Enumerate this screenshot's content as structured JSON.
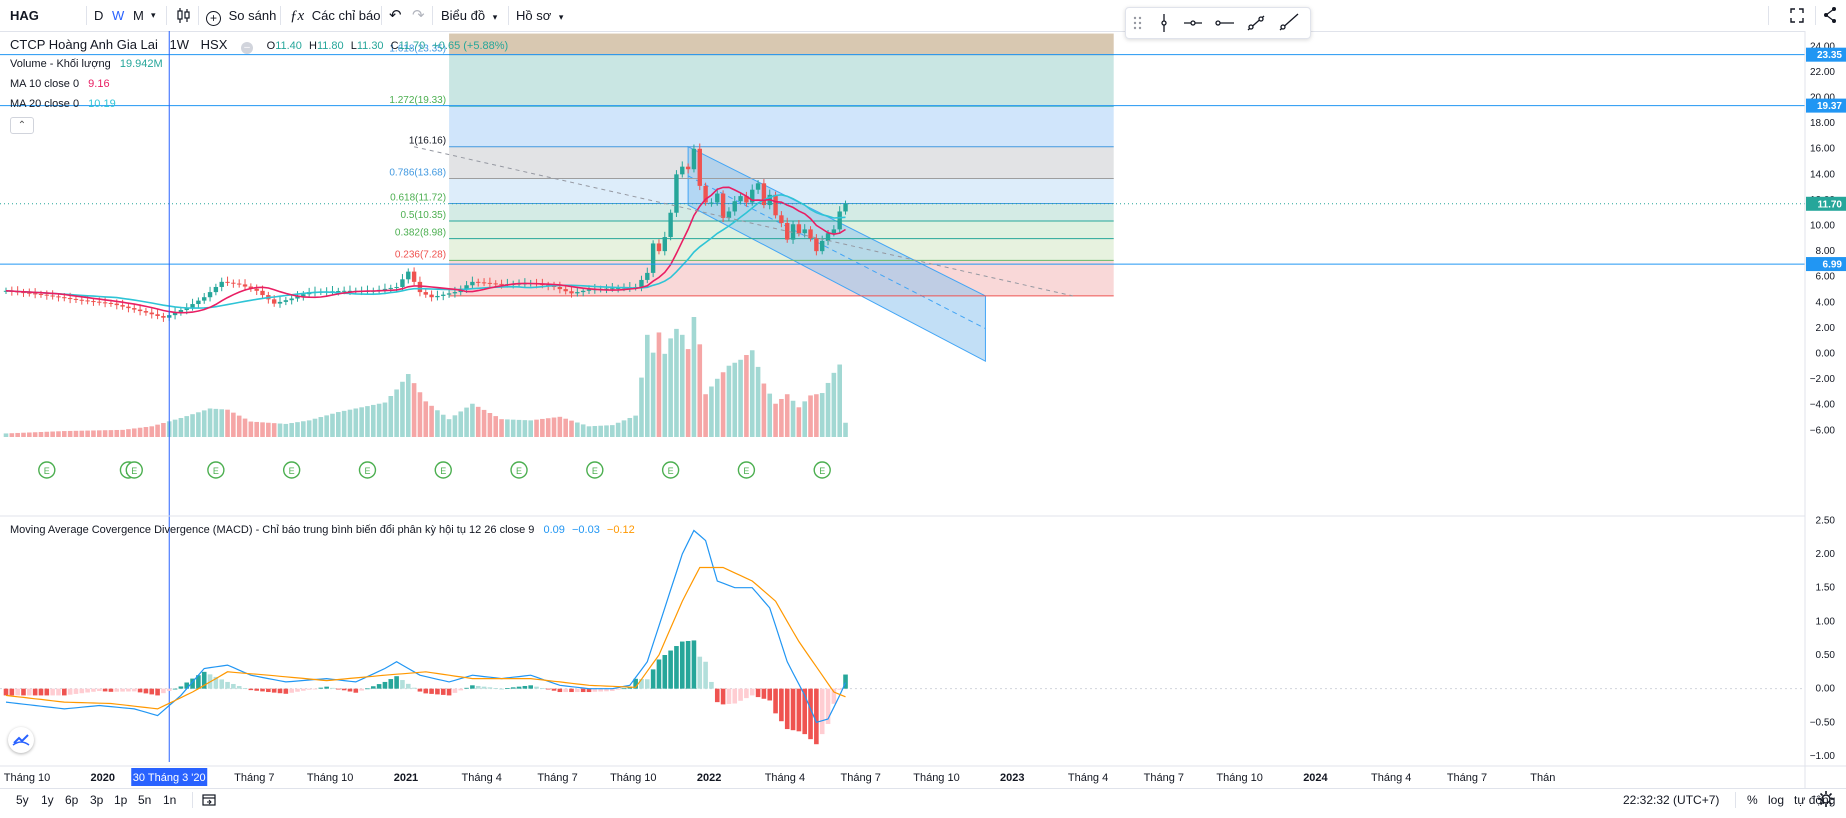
{
  "toolbar": {
    "symbol": "HAG",
    "intervals": [
      "D",
      "W",
      "M"
    ],
    "active_interval": "W",
    "compare_label": "So sánh",
    "indicators_label": "Các chỉ báo",
    "chart_menu_label": "Biểu đồ",
    "profile_label": "Hồ sơ"
  },
  "legend": {
    "title": "CTCP Hoàng Anh Gia Lai",
    "interval": "1W",
    "exchange": "HSX",
    "ohlc": {
      "o_label": "O",
      "o": "11.40",
      "h_label": "H",
      "h": "11.80",
      "l_label": "L",
      "l": "11.30",
      "c_label": "C",
      "c": "11.70",
      "change": "+0.65 (+5.88%)"
    },
    "volume_label": "Volume - Khối lượng",
    "volume_value": "19.942M",
    "ma10_label": "MA 10 close 0",
    "ma10_value": "9.16",
    "ma20_label": "MA 20 close 0",
    "ma20_value": "10.19",
    "macd_label": "Moving Average Covergence Divergence (MACD) - Chỉ báo trung bình biến đổi phân kỳ hội tụ 12 26 close 9",
    "macd_values": [
      "0.09",
      "−0.03",
      "−0.12"
    ]
  },
  "colors": {
    "up": "#26a69a",
    "down": "#ef5350",
    "ma10": "#e91e63",
    "ma20": "#2ec4d6",
    "macd": "#2196f3",
    "signal": "#ff9800",
    "accent": "#2962ff",
    "hline": "#2196f3"
  },
  "chart_data": [
    {
      "type": "candlestick",
      "scale_labels": [
        "24.00",
        "22.00",
        "20.00",
        "18.00",
        "16.00",
        "14.00",
        "12.00",
        "10.00",
        "8.00",
        "6.00",
        "4.00",
        "2.00",
        "0.00",
        "−2.00",
        "−4.00",
        "−6.00"
      ],
      "ylim": [
        -6.6,
        25.2
      ],
      "last_price": "11.70",
      "horizontal_lines": [
        {
          "value": 23.35,
          "label": "23.35"
        },
        {
          "value": 19.37,
          "label": "19.37"
        },
        {
          "value": 6.99,
          "label": "6.99"
        }
      ],
      "fibonacci": {
        "levels": [
          {
            "label": "1.618(23.35)",
            "value": 23.35
          },
          {
            "label": "1.272(19.33)",
            "value": 19.33
          },
          {
            "label": "1(16.16)",
            "value": 16.16
          },
          {
            "label": "0.786(13.68)",
            "value": 13.68
          },
          {
            "label": "0.618(11.72)",
            "value": 11.72
          },
          {
            "label": "0.5(10.35)",
            "value": 10.35
          },
          {
            "label": "0.382(8.98)",
            "value": 8.98
          },
          {
            "label": "0.236(7.28)",
            "value": 7.28
          },
          {
            "value": 4.5
          }
        ],
        "top_extent": 25.0
      },
      "events_label": "E",
      "x_axis": [
        {
          "label": "Tháng 10",
          "idx": 0
        },
        {
          "label": "2020",
          "idx": 13
        },
        {
          "label": "30 Tháng 3 '20",
          "idx": 26,
          "highlight": true
        },
        {
          "label": "Tháng 7",
          "idx": 39
        },
        {
          "label": "Tháng 10",
          "idx": 52
        },
        {
          "label": "2021",
          "idx": 65
        },
        {
          "label": "Tháng 4",
          "idx": 78
        },
        {
          "label": "Tháng 7",
          "idx": 91
        },
        {
          "label": "Tháng 10",
          "idx": 104
        },
        {
          "label": "2022",
          "idx": 117
        },
        {
          "label": "Tháng 4",
          "idx": 130
        },
        {
          "label": "Tháng 7",
          "idx": 143
        },
        {
          "label": "Tháng 10",
          "idx": 156
        },
        {
          "label": "2023",
          "idx": 169
        },
        {
          "label": "Tháng 4",
          "idx": 182
        },
        {
          "label": "Tháng 7",
          "idx": 195
        },
        {
          "label": "Tháng 10",
          "idx": 208
        },
        {
          "label": "2024",
          "idx": 221
        },
        {
          "label": "Tháng 4",
          "idx": 234
        },
        {
          "label": "Tháng 7",
          "idx": 247
        },
        {
          "label": "Thán",
          "idx": 260
        }
      ],
      "close_anchors": [
        [
          0,
          4.9
        ],
        [
          6,
          4.6
        ],
        [
          12,
          4.2
        ],
        [
          18,
          3.9
        ],
        [
          24,
          3.2
        ],
        [
          27,
          2.8
        ],
        [
          31,
          3.6
        ],
        [
          34,
          4.4
        ],
        [
          37,
          5.6
        ],
        [
          40,
          5.4
        ],
        [
          43,
          4.9
        ],
        [
          46,
          3.9
        ],
        [
          49,
          4.3
        ],
        [
          52,
          4.8
        ],
        [
          58,
          4.9
        ],
        [
          63,
          4.9
        ],
        [
          67,
          5.2
        ],
        [
          69,
          6.4
        ],
        [
          71,
          4.8
        ],
        [
          73,
          4.4
        ],
        [
          77,
          4.8
        ],
        [
          80,
          5.6
        ],
        [
          85,
          5.4
        ],
        [
          90,
          5.5
        ],
        [
          94,
          5.2
        ],
        [
          97,
          4.7
        ],
        [
          100,
          5.0
        ],
        [
          104,
          5.1
        ],
        [
          108,
          5.2
        ],
        [
          110,
          6.3
        ],
        [
          111,
          8.6
        ],
        [
          112,
          8.0
        ],
        [
          113,
          9.1
        ],
        [
          114,
          11.0
        ],
        [
          115,
          14.0
        ],
        [
          116,
          14.6
        ],
        [
          117,
          14.4
        ],
        [
          118,
          16.0
        ],
        [
          119,
          13.1
        ],
        [
          120,
          11.8
        ],
        [
          121,
          11.8
        ],
        [
          122,
          12.5
        ],
        [
          123,
          10.6
        ],
        [
          124,
          11.1
        ],
        [
          125,
          11.9
        ],
        [
          126,
          12.3
        ],
        [
          127,
          11.8
        ],
        [
          128,
          12.8
        ],
        [
          129,
          13.3
        ],
        [
          130,
          11.6
        ],
        [
          131,
          12.4
        ],
        [
          132,
          10.8
        ],
        [
          133,
          10.2
        ],
        [
          134,
          8.9
        ],
        [
          135,
          10.1
        ],
        [
          136,
          9.4
        ],
        [
          137,
          9.7
        ],
        [
          138,
          9.0
        ],
        [
          139,
          8.0
        ],
        [
          140,
          8.8
        ],
        [
          141,
          9.4
        ],
        [
          142,
          9.7
        ],
        [
          143,
          11.1
        ],
        [
          144,
          11.7
        ]
      ],
      "volume_anchors": [
        [
          0,
          0.3
        ],
        [
          10,
          0.5
        ],
        [
          20,
          0.6
        ],
        [
          25,
          0.9
        ],
        [
          30,
          1.6
        ],
        [
          35,
          2.4
        ],
        [
          38,
          2.3
        ],
        [
          42,
          1.3
        ],
        [
          48,
          1.1
        ],
        [
          52,
          1.4
        ],
        [
          57,
          2.1
        ],
        [
          62,
          2.6
        ],
        [
          65,
          2.9
        ],
        [
          67,
          4.0
        ],
        [
          69,
          5.3
        ],
        [
          72,
          3.0
        ],
        [
          76,
          1.5
        ],
        [
          80,
          2.8
        ],
        [
          85,
          1.5
        ],
        [
          90,
          1.4
        ],
        [
          95,
          1.7
        ],
        [
          100,
          0.9
        ],
        [
          104,
          1.0
        ],
        [
          108,
          1.8
        ],
        [
          109,
          5.0
        ],
        [
          110,
          8.6
        ],
        [
          111,
          7.1
        ],
        [
          112,
          8.8
        ],
        [
          113,
          7.0
        ],
        [
          114,
          8.3
        ],
        [
          115,
          9.1
        ],
        [
          116,
          8.6
        ],
        [
          117,
          7.4
        ],
        [
          118,
          10.1
        ],
        [
          119,
          7.8
        ],
        [
          120,
          3.6
        ],
        [
          122,
          4.9
        ],
        [
          124,
          6.0
        ],
        [
          126,
          6.5
        ],
        [
          128,
          7.3
        ],
        [
          130,
          4.5
        ],
        [
          132,
          2.8
        ],
        [
          134,
          3.6
        ],
        [
          136,
          2.5
        ],
        [
          138,
          3.5
        ],
        [
          140,
          3.7
        ],
        [
          142,
          5.4
        ],
        [
          143,
          6.1
        ],
        [
          144,
          1.2
        ]
      ],
      "volume_max": 10.1,
      "channel": {
        "upper": [
          [
            117,
            16.16
          ],
          [
            168,
            4.5
          ]
        ],
        "lower": [
          [
            117,
            11.6
          ],
          [
            168,
            -0.6
          ]
        ],
        "middle": [
          [
            117,
            13.88
          ],
          [
            168,
            1.95
          ]
        ]
      },
      "trend_line": [
        [
          70,
          16.16
        ],
        [
          183,
          4.5
        ]
      ]
    },
    {
      "type": "line",
      "scale_labels": [
        "2.50",
        "2.00",
        "1.50",
        "1.00",
        "0.50",
        "0.00",
        "−0.50",
        "−1.00"
      ],
      "ylim": [
        -1.0,
        2.55
      ],
      "zero": 0,
      "macd_anchors": [
        [
          0,
          -0.2
        ],
        [
          10,
          -0.3
        ],
        [
          16,
          -0.25
        ],
        [
          22,
          -0.3
        ],
        [
          26,
          -0.4
        ],
        [
          30,
          -0.1
        ],
        [
          34,
          0.3
        ],
        [
          38,
          0.35
        ],
        [
          42,
          0.2
        ],
        [
          48,
          0.1
        ],
        [
          55,
          0.15
        ],
        [
          60,
          0.1
        ],
        [
          65,
          0.3
        ],
        [
          67,
          0.4
        ],
        [
          71,
          0.2
        ],
        [
          76,
          0.1
        ],
        [
          80,
          0.2
        ],
        [
          85,
          0.15
        ],
        [
          90,
          0.2
        ],
        [
          95,
          0.05
        ],
        [
          100,
          0.0
        ],
        [
          104,
          0.0
        ],
        [
          107,
          0.05
        ],
        [
          110,
          0.4
        ],
        [
          113,
          1.2
        ],
        [
          116,
          2.0
        ],
        [
          118,
          2.35
        ],
        [
          120,
          2.2
        ],
        [
          122,
          1.6
        ],
        [
          125,
          1.5
        ],
        [
          128,
          1.5
        ],
        [
          131,
          1.2
        ],
        [
          134,
          0.4
        ],
        [
          137,
          -0.1
        ],
        [
          139,
          -0.5
        ],
        [
          141,
          -0.45
        ],
        [
          143,
          -0.1
        ],
        [
          144,
          0.09
        ]
      ],
      "signal_anchors": [
        [
          0,
          -0.1
        ],
        [
          10,
          -0.2
        ],
        [
          18,
          -0.22
        ],
        [
          26,
          -0.3
        ],
        [
          32,
          -0.05
        ],
        [
          38,
          0.25
        ],
        [
          45,
          0.2
        ],
        [
          55,
          0.12
        ],
        [
          65,
          0.2
        ],
        [
          72,
          0.25
        ],
        [
          80,
          0.15
        ],
        [
          90,
          0.15
        ],
        [
          100,
          0.05
        ],
        [
          108,
          0.02
        ],
        [
          112,
          0.5
        ],
        [
          116,
          1.3
        ],
        [
          119,
          1.8
        ],
        [
          123,
          1.8
        ],
        [
          128,
          1.6
        ],
        [
          132,
          1.3
        ],
        [
          136,
          0.7
        ],
        [
          140,
          0.2
        ],
        [
          142,
          -0.05
        ],
        [
          144,
          -0.12
        ]
      ]
    }
  ],
  "bottombar": {
    "ranges": [
      "5y",
      "1y",
      "6p",
      "3p",
      "1p",
      "5n",
      "1n"
    ],
    "time": "22:32:32 (UTC+7)",
    "percent_label": "%",
    "log_label": "log",
    "auto_label": "tự động"
  }
}
